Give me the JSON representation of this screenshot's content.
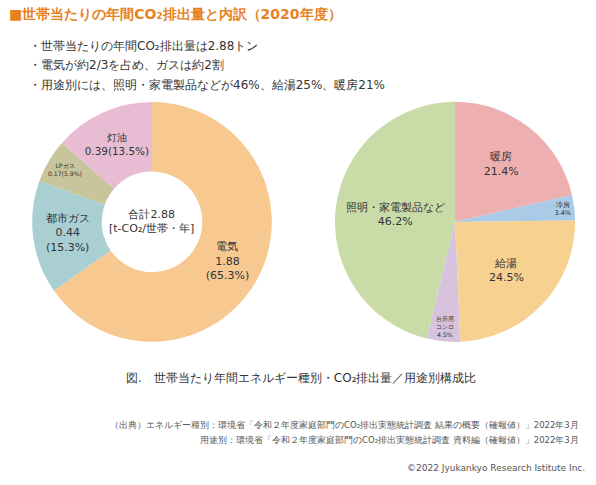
{
  "title": "■世帯当たりの年間CO₂排出量と内訳（2020年度）",
  "notes": [
    "・世帯当たりの年間CO₂排出量は2.88トン",
    "・電気が約2/3を占め、ガスは約2割",
    "・用途別には、照明・家電製品などが46%、給湯25%、暖房21%"
  ],
  "caption": "図.　世帯当たり年間エネルギー種別・CO₂排出量／用途別構成比",
  "sources": [
    "（出典）エネルギー種別：環境省「令和２年度家庭部門のCO₂排出実態統計調査 結果の概要（確報値）」2022年3月",
    "用途別：環境省「令和２年度家庭部門のCO₂排出実態統計調査 資料編（確報値）」2022年3月"
  ],
  "copyright": "©2022 Jyukankyo Research Istitute Inc.",
  "chart_data": [
    {
      "type": "donut",
      "categories": [
        "電気",
        "都市ガス",
        "LPガス",
        "灯油"
      ],
      "values": [
        1.88,
        0.44,
        0.17,
        0.39
      ],
      "value_labels": [
        "1.88\n(65.3%)",
        "0.44\n(15.3%)",
        "0.17(5.9%)",
        "0.39(13.5%)"
      ],
      "colors": [
        "#f8c891",
        "#aacfd3",
        "#c8c49b",
        "#e8bdd3"
      ],
      "center_label": "合計2.88\n[t-CO₂/世帯・年]",
      "data_labels": true
    },
    {
      "type": "pie",
      "categories": [
        "暖房",
        "冷房",
        "給湯",
        "台所用\nコンロ",
        "照明・家電製品など"
      ],
      "values": [
        21.4,
        3.4,
        24.5,
        4.5,
        46.2
      ],
      "value_labels": [
        "21.4%",
        "3.4%",
        "24.5%",
        "4.5%",
        "46.2%"
      ],
      "colors": [
        "#eeafb1",
        "#a9cbe8",
        "#f6d190",
        "#d8c3de",
        "#c9dca7"
      ],
      "data_labels": true
    }
  ]
}
